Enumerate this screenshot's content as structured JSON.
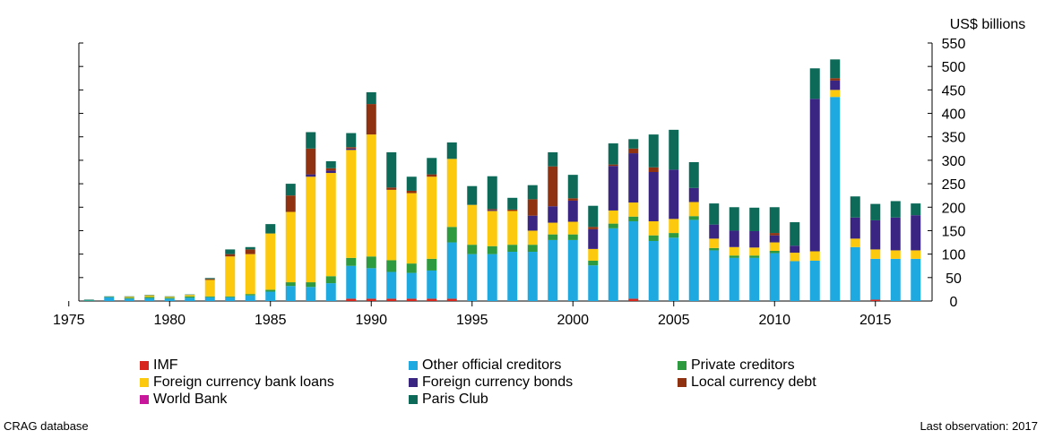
{
  "chart_data": {
    "type": "bar",
    "stacked": true,
    "ylabel": "US$ billions",
    "ylim": [
      0,
      550
    ],
    "yticks": [
      0,
      50,
      100,
      150,
      200,
      250,
      300,
      350,
      400,
      450,
      500,
      550
    ],
    "xticks": [
      1975,
      1980,
      1985,
      1990,
      1995,
      2000,
      2005,
      2010,
      2015
    ],
    "x": [
      1976,
      1977,
      1978,
      1979,
      1980,
      1981,
      1982,
      1983,
      1984,
      1985,
      1986,
      1987,
      1988,
      1989,
      1990,
      1991,
      1992,
      1993,
      1994,
      1995,
      1996,
      1997,
      1998,
      1999,
      2000,
      2001,
      2002,
      2003,
      2004,
      2005,
      2006,
      2007,
      2008,
      2009,
      2010,
      2011,
      2012,
      2013,
      2014,
      2015,
      2016,
      2017
    ],
    "series": [
      {
        "name": "IMF",
        "color": "#d7261e",
        "values": [
          0,
          0,
          0,
          0,
          0,
          0,
          0,
          0,
          0,
          0,
          0,
          0,
          0,
          5,
          5,
          5,
          5,
          5,
          5,
          0,
          0,
          0,
          0,
          0,
          0,
          0,
          0,
          5,
          0,
          0,
          0,
          0,
          0,
          0,
          0,
          0,
          0,
          0,
          0,
          3,
          0,
          0
        ]
      },
      {
        "name": "World Bank",
        "color": "#c8179b",
        "values": [
          0,
          0,
          0,
          0,
          0,
          0,
          0,
          0,
          0,
          0,
          0,
          0,
          0,
          0,
          0,
          0,
          0,
          0,
          0,
          0,
          0,
          0,
          0,
          0,
          0,
          0,
          0,
          0,
          0,
          0,
          0,
          0,
          0,
          0,
          0,
          0,
          0,
          0,
          0,
          0,
          0,
          0
        ]
      },
      {
        "name": "Other official creditors",
        "color": "#1fa9e1",
        "values": [
          1,
          8,
          5,
          6,
          5,
          7,
          8,
          8,
          12,
          20,
          32,
          30,
          38,
          70,
          65,
          57,
          55,
          60,
          120,
          100,
          100,
          105,
          105,
          130,
          130,
          76,
          155,
          165,
          128,
          135,
          173,
          108,
          92,
          92,
          102,
          85,
          86,
          435,
          115,
          87,
          90,
          90
        ]
      },
      {
        "name": "Private creditors",
        "color": "#2e9a3f",
        "values": [
          1,
          1,
          2,
          3,
          2,
          3,
          2,
          2,
          3,
          4,
          8,
          10,
          15,
          17,
          25,
          25,
          20,
          25,
          33,
          20,
          17,
          15,
          15,
          12,
          12,
          10,
          10,
          10,
          12,
          10,
          8,
          5,
          5,
          5,
          5,
          0,
          0,
          0,
          0,
          0,
          0,
          0
        ]
      },
      {
        "name": "Foreign currency bank loans",
        "color": "#fdc90f",
        "values": [
          0,
          0,
          2,
          3,
          2,
          3,
          35,
          85,
          85,
          120,
          150,
          225,
          220,
          230,
          260,
          150,
          150,
          175,
          145,
          85,
          75,
          72,
          30,
          25,
          27,
          25,
          28,
          30,
          30,
          30,
          30,
          20,
          18,
          17,
          18,
          18,
          20,
          15,
          18,
          20,
          18,
          18
        ]
      },
      {
        "name": "Foreign currency bonds",
        "color": "#3a2583",
        "values": [
          0,
          0,
          0,
          0,
          0,
          0,
          0,
          0,
          0,
          0,
          0,
          5,
          5,
          3,
          0,
          0,
          0,
          0,
          0,
          0,
          2,
          0,
          32,
          35,
          45,
          42,
          95,
          105,
          105,
          105,
          30,
          30,
          35,
          35,
          15,
          15,
          325,
          20,
          45,
          62,
          70,
          75
        ]
      },
      {
        "name": "Local currency debt",
        "color": "#8f3211",
        "values": [
          0,
          0,
          0,
          0,
          0,
          0,
          2,
          5,
          10,
          0,
          35,
          55,
          5,
          3,
          65,
          5,
          5,
          5,
          0,
          0,
          2,
          3,
          35,
          85,
          5,
          5,
          3,
          10,
          10,
          0,
          0,
          0,
          0,
          0,
          5,
          0,
          0,
          5,
          0,
          0,
          0,
          0
        ]
      },
      {
        "name": "Paris Club",
        "color": "#0d6a58",
        "values": [
          1,
          1,
          1,
          1,
          1,
          1,
          2,
          10,
          5,
          20,
          25,
          35,
          15,
          30,
          25,
          75,
          30,
          35,
          35,
          40,
          70,
          25,
          30,
          30,
          50,
          45,
          45,
          20,
          70,
          85,
          55,
          45,
          50,
          50,
          55,
          50,
          65,
          40,
          45,
          35,
          35,
          25
        ]
      }
    ]
  },
  "legend_layout": [
    "IMF",
    "Other official creditors",
    "Private creditors",
    "Foreign currency bank loans",
    "Foreign currency bonds",
    "Local currency debt",
    "World Bank",
    "Paris Club"
  ],
  "footer": {
    "source": "CRAG database",
    "last_observation": "Last observation: 2017"
  }
}
